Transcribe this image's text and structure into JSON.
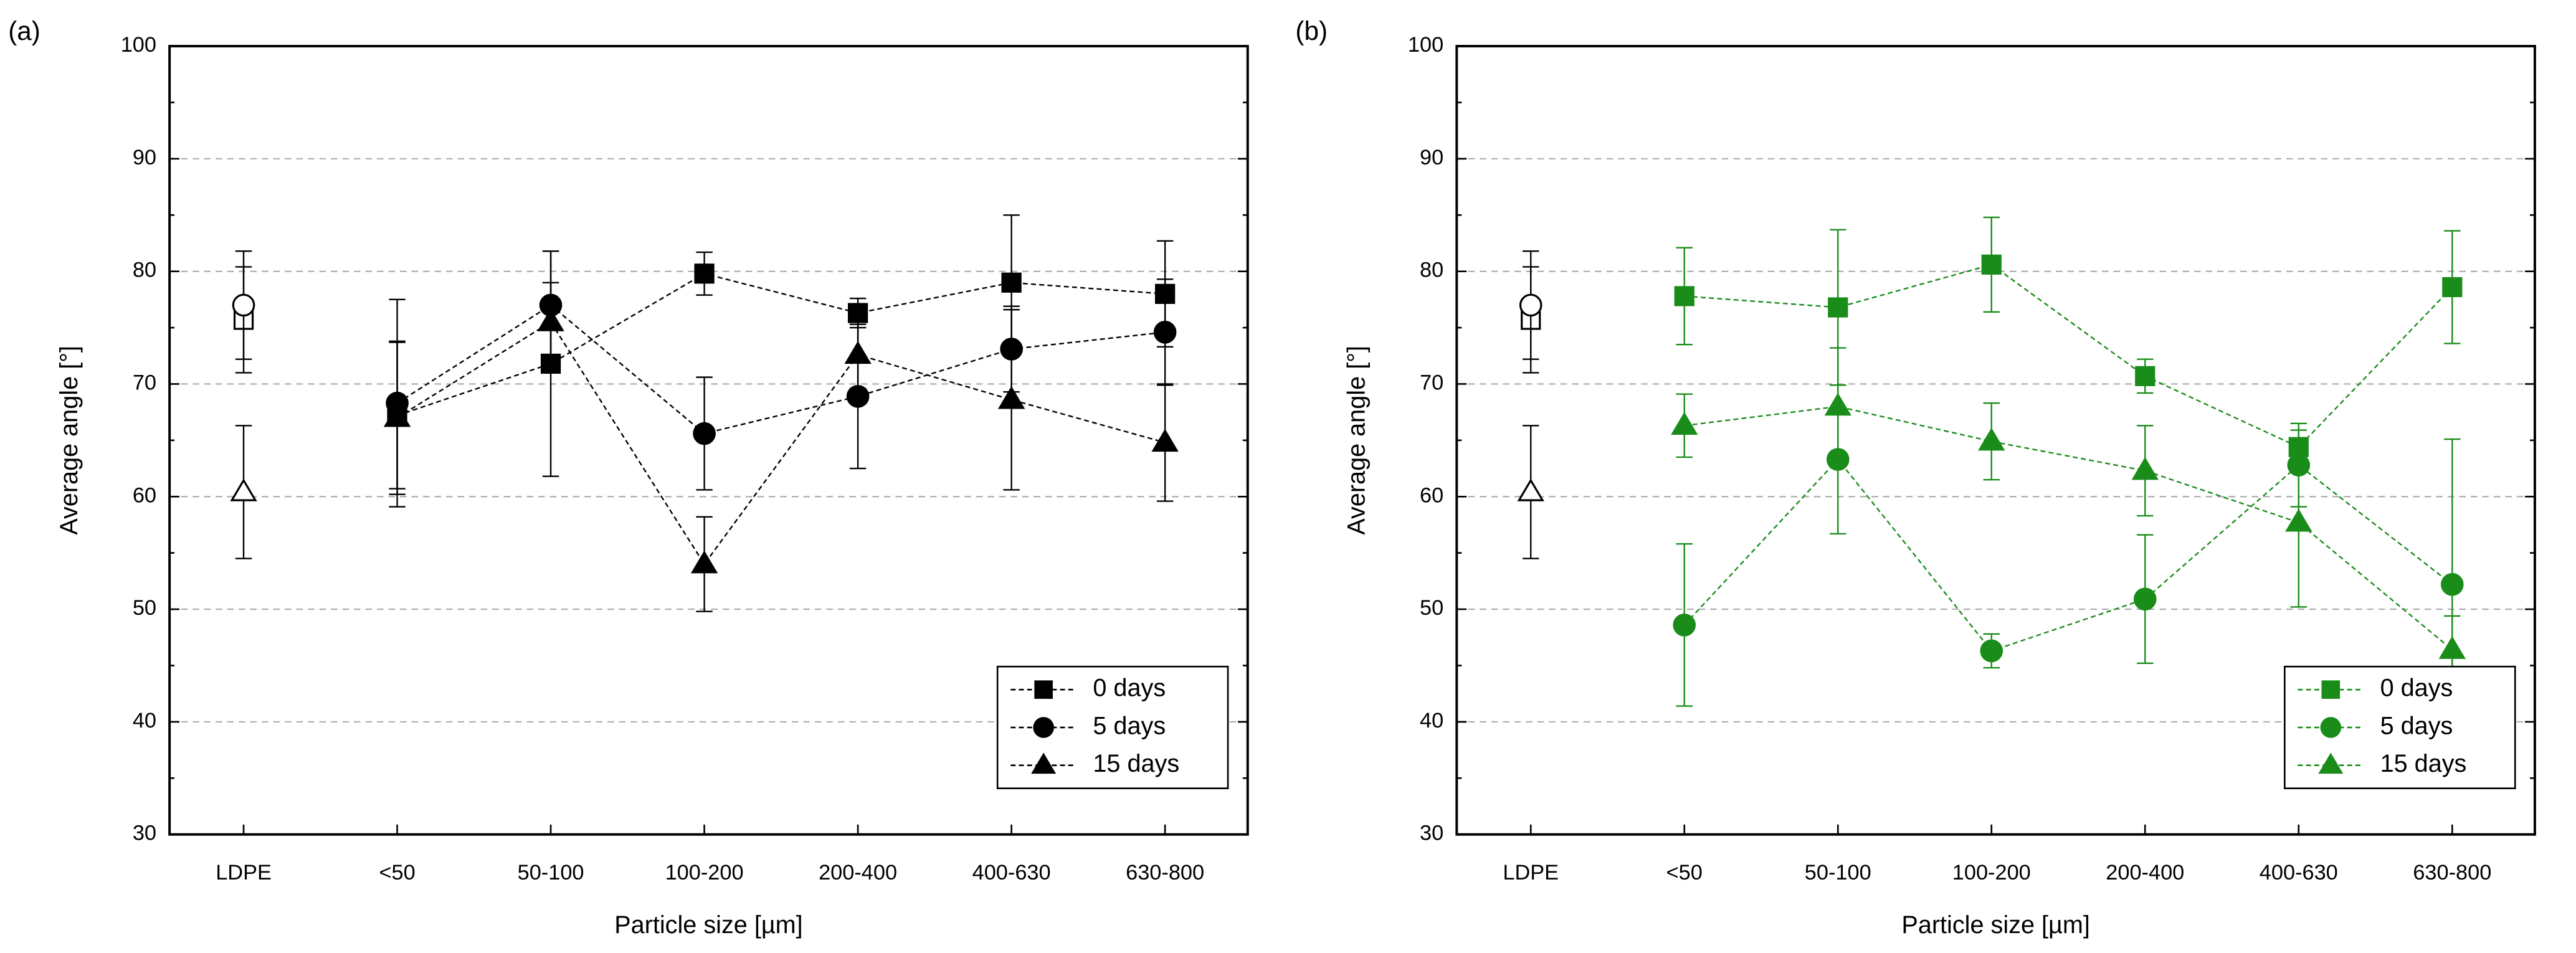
{
  "chart_data": [
    {
      "type": "line",
      "panel_label": "(a)",
      "ylabel": "Average angle [°]",
      "xlabel": "Particle size [µm]",
      "categories": [
        "LDPE",
        "<50",
        "50-100",
        "100-200",
        "200-400",
        "400-630",
        "630-800"
      ],
      "reference_index": 0,
      "reference_color": "#000000",
      "ylim": [
        30,
        100
      ],
      "yticks": [
        30,
        40,
        50,
        60,
        70,
        80,
        90,
        100
      ],
      "grid": true,
      "legend": "lower right",
      "series": [
        {
          "name": "0 days",
          "color": "#000000",
          "marker": "square",
          "values": [
            75.7,
            67.2,
            71.8,
            79.8,
            76.3,
            79.0,
            78.0
          ],
          "errors": [
            4.7,
            6.5,
            10.0,
            1.9,
            1.3,
            6.0,
            4.7
          ]
        },
        {
          "name": "5 days",
          "color": "#000000",
          "marker": "circle",
          "values": [
            77.0,
            68.3,
            77.0,
            65.6,
            68.9,
            73.1,
            74.6
          ],
          "errors": [
            4.8,
            9.2,
            4.8,
            5.0,
            6.4,
            3.8,
            4.7
          ]
        },
        {
          "name": "15 days",
          "color": "#000000",
          "marker": "triangle",
          "values": [
            60.4,
            67.0,
            75.5,
            54.0,
            72.6,
            68.6,
            64.8
          ],
          "errors": [
            5.9,
            6.8,
            3.5,
            4.2,
            3.0,
            8.0,
            5.2
          ]
        }
      ]
    },
    {
      "type": "line",
      "panel_label": "(b)",
      "ylabel": "Average angle [°]",
      "xlabel": "Particle size [µm]",
      "categories": [
        "LDPE",
        "<50",
        "50-100",
        "100-200",
        "200-400",
        "400-630",
        "630-800"
      ],
      "reference_index": 0,
      "reference_color": "#000000",
      "ylim": [
        30,
        100
      ],
      "yticks": [
        30,
        40,
        50,
        60,
        70,
        80,
        90,
        100
      ],
      "grid": true,
      "legend": "lower right",
      "series": [
        {
          "name": "0 days",
          "color": "#1a8c1a",
          "marker": "square",
          "values": [
            75.7,
            77.8,
            76.8,
            80.6,
            70.7,
            64.4,
            78.6
          ],
          "errors": [
            4.7,
            4.3,
            6.9,
            4.2,
            1.5,
            1.5,
            5.0
          ]
        },
        {
          "name": "5 days",
          "color": "#1a8c1a",
          "marker": "circle",
          "values": [
            77.0,
            48.6,
            63.3,
            46.3,
            50.9,
            62.8,
            52.2
          ],
          "errors": [
            4.8,
            7.2,
            6.6,
            1.5,
            5.7,
            3.7,
            12.9
          ]
        },
        {
          "name": "15 days",
          "color": "#1a8c1a",
          "marker": "triangle",
          "values": [
            60.4,
            66.3,
            68.0,
            64.9,
            62.3,
            57.7,
            46.4
          ],
          "errors": [
            5.9,
            2.8,
            5.2,
            3.4,
            4.0,
            7.5,
            3.0
          ]
        }
      ]
    }
  ]
}
